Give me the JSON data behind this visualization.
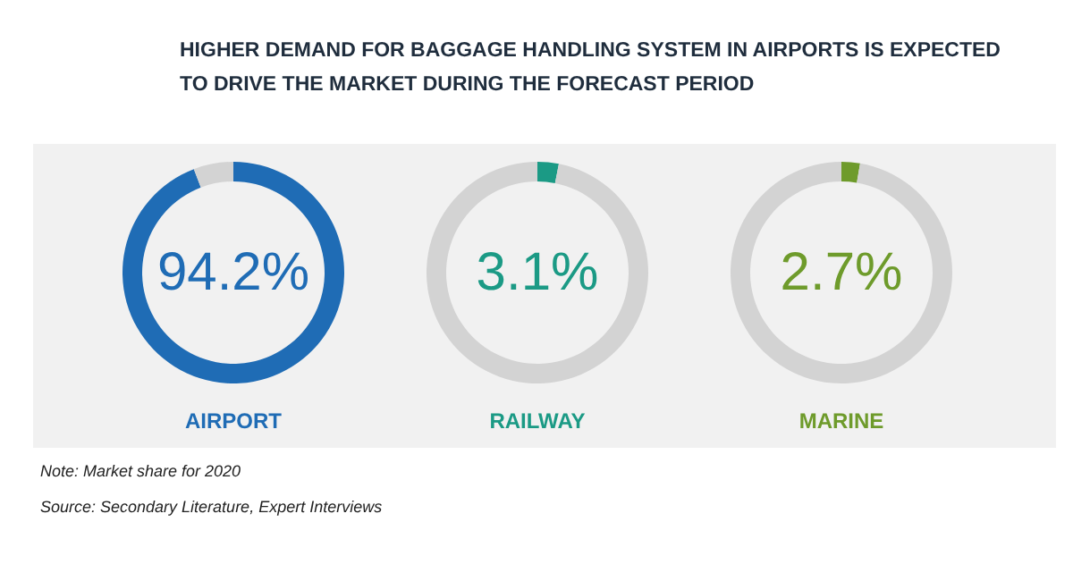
{
  "chart_data": [
    {
      "type": "donut",
      "title": "AIRPORT",
      "categories": [
        null,
        null
      ],
      "values": [
        94.2,
        5.8
      ],
      "colors": [
        "#1f6cb5",
        "#d3d3d3"
      ],
      "annotations": [
        "94.2%",
        "HIGHER DEMAND FOR BAGGAGE HANDLING SYSTEM IN AIRPORTS IS EXPECTED\nTO DRIVE THE MARKET DURING THE FORECAST PERIOD",
        "Note: Market share for 2020",
        "Source: Secondary Literature, Expert Interviews"
      ]
    },
    {
      "type": "donut",
      "title": "RAILWAY",
      "categories": [
        null,
        null
      ],
      "values": [
        3.1,
        96.9
      ],
      "colors": [
        "#1b9a85",
        "#d3d3d3"
      ],
      "annotations": [
        "3.1%"
      ]
    },
    {
      "type": "donut",
      "title": "MARINE",
      "categories": [
        null,
        null
      ],
      "values": [
        2.7,
        97.3
      ],
      "colors": [
        "#6e9b2b",
        "#d3d3d3"
      ],
      "annotations": [
        "2.7%"
      ]
    }
  ]
}
